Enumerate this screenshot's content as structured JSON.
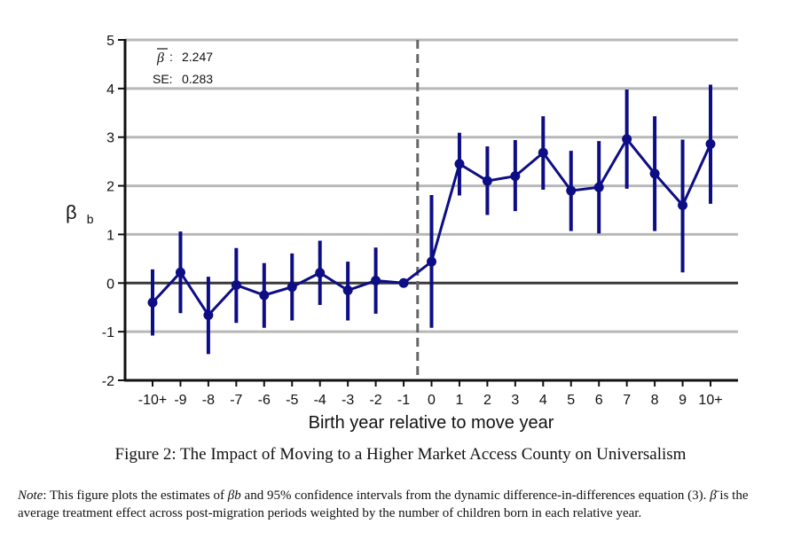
{
  "figure": {
    "caption": "Figure 2: The Impact of Moving to a Higher Market Access County on Universalism",
    "note_label": "Note",
    "note_part1": ": This figure plots the estimates of ",
    "note_beta_b": "βb",
    "note_part2": " and 95% confidence intervals from the dynamic difference-in-differences equation (3). ",
    "note_beta_bar": "β̄",
    "note_part3": " is the average treatment effect across post-migration periods weighted by the number of children born in each relative year."
  },
  "chart_data": {
    "type": "line",
    "categories": [
      "-10+",
      "-9",
      "-8",
      "-7",
      "-6",
      "-5",
      "-4",
      "-3",
      "-2",
      "-1",
      "0",
      "1",
      "2",
      "3",
      "4",
      "5",
      "6",
      "7",
      "8",
      "9",
      "10+"
    ],
    "values": [
      -0.4,
      0.22,
      -0.66,
      -0.04,
      -0.25,
      -0.08,
      0.21,
      -0.15,
      0.05,
      0.0,
      0.44,
      2.45,
      2.1,
      2.2,
      2.68,
      1.9,
      1.97,
      2.96,
      2.25,
      1.6,
      2.86
    ],
    "ci_lower": [
      -1.08,
      -0.62,
      -1.46,
      -0.82,
      -0.92,
      -0.77,
      -0.45,
      -0.77,
      -0.63,
      0.0,
      -0.92,
      1.8,
      1.4,
      1.48,
      1.92,
      1.07,
      1.02,
      1.94,
      1.07,
      0.22,
      1.63
    ],
    "ci_upper": [
      0.28,
      1.06,
      0.13,
      0.72,
      0.41,
      0.61,
      0.87,
      0.44,
      0.73,
      0.0,
      1.81,
      3.09,
      2.81,
      2.94,
      3.43,
      2.72,
      2.92,
      3.98,
      3.43,
      2.95,
      4.08
    ],
    "xlabel": "Birth year relative to move year",
    "ylabel": "β",
    "ylabel_sub": "b",
    "ylim": [
      -2,
      5
    ],
    "yticks": [
      -2,
      -1,
      0,
      1,
      2,
      3,
      4,
      5
    ],
    "event_line_after": "-1",
    "grid": true,
    "annotations": {
      "beta_bar_symbol": "β",
      "beta_bar_sep": ":",
      "beta_bar_value": "2.247",
      "se_label": "SE:",
      "se_value": "0.283"
    },
    "colors": {
      "series": "#0d0d85",
      "grid": "#b8b8b8",
      "zero_line": "#3a3a3a",
      "event_line": "#666666",
      "axis": "#111111"
    }
  }
}
